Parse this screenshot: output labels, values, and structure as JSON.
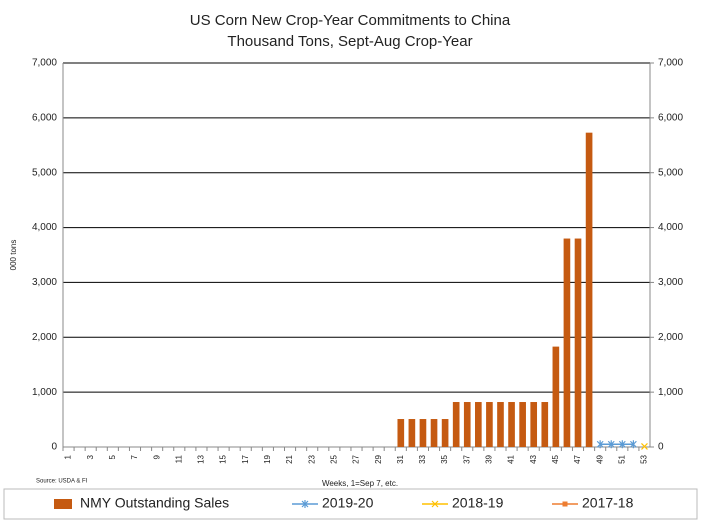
{
  "chart_data": {
    "type": "bar",
    "title": "US Corn New Crop-Year Commitments to China",
    "subtitle": "Thousand Tons, Sept-Aug Crop-Year",
    "y_label": "000 tons",
    "x_label": "Weeks, 1=Sep 7, etc.",
    "source": "Source: USDA & FI",
    "categories": [
      "1",
      null,
      "3",
      null,
      "5",
      null,
      "7",
      null,
      "9",
      null,
      "11",
      null,
      "13",
      null,
      "15",
      null,
      "17",
      null,
      "19",
      null,
      "21",
      null,
      "23",
      null,
      "25",
      null,
      "27",
      null,
      "29",
      null,
      "31",
      null,
      "33",
      null,
      "35",
      null,
      "37",
      null,
      "39",
      null,
      "41",
      null,
      "43",
      null,
      "45",
      null,
      "47",
      null,
      "49",
      null,
      "51",
      null,
      "53"
    ],
    "series": [
      {
        "name": "NMY Outstanding Sales",
        "type": "bar",
        "color": "#c55a11",
        "values": [
          0,
          0,
          0,
          0,
          0,
          0,
          0,
          0,
          0,
          0,
          0,
          0,
          0,
          0,
          0,
          0,
          0,
          0,
          0,
          0,
          0,
          0,
          0,
          0,
          0,
          0,
          0,
          0,
          0,
          0,
          510,
          510,
          510,
          510,
          510,
          820,
          820,
          820,
          820,
          820,
          820,
          820,
          820,
          820,
          1830,
          3800,
          3800,
          5730,
          null,
          null,
          null,
          null,
          null
        ]
      },
      {
        "name": "2019-20",
        "type": "line",
        "marker": "star",
        "color": "#5b9bd5",
        "values": [
          null,
          null,
          null,
          null,
          null,
          null,
          null,
          null,
          null,
          null,
          null,
          null,
          null,
          null,
          null,
          null,
          null,
          null,
          null,
          null,
          null,
          null,
          null,
          null,
          null,
          null,
          null,
          null,
          null,
          null,
          null,
          null,
          null,
          null,
          null,
          null,
          null,
          null,
          null,
          null,
          null,
          null,
          null,
          null,
          null,
          null,
          null,
          null,
          50,
          50,
          50,
          50,
          null
        ]
      },
      {
        "name": "2018-19",
        "type": "line",
        "marker": "x",
        "color": "#ffc000",
        "values": [
          null,
          null,
          null,
          null,
          null,
          null,
          null,
          null,
          null,
          null,
          null,
          null,
          null,
          null,
          null,
          null,
          null,
          null,
          null,
          null,
          null,
          null,
          null,
          null,
          null,
          null,
          null,
          null,
          null,
          null,
          null,
          null,
          null,
          null,
          null,
          null,
          null,
          null,
          null,
          null,
          null,
          null,
          null,
          null,
          null,
          null,
          null,
          null,
          null,
          null,
          null,
          null,
          10
        ]
      },
      {
        "name": "2017-18",
        "type": "line",
        "marker": "square",
        "color": "#ed7d31",
        "values": [
          null,
          null,
          null,
          null,
          null,
          null,
          null,
          null,
          null,
          null,
          null,
          null,
          null,
          null,
          null,
          null,
          null,
          null,
          null,
          null,
          null,
          null,
          null,
          null,
          null,
          null,
          null,
          null,
          null,
          null,
          null,
          null,
          null,
          null,
          null,
          null,
          null,
          null,
          null,
          null,
          null,
          null,
          null,
          null,
          null,
          null,
          null,
          null,
          null,
          null,
          null,
          null,
          null
        ]
      }
    ],
    "ylim": [
      0,
      7000
    ],
    "yticks": [
      0,
      {
        "value": 1000,
        "label": "1,000"
      },
      {
        "value": 2000,
        "label": "2,000"
      },
      {
        "value": 3000,
        "label": "3,000"
      },
      {
        "value": 4000,
        "label": "4,000"
      },
      {
        "value": 5000,
        "label": "5,000"
      },
      {
        "value": 6000,
        "label": "6,000"
      },
      {
        "value": 7000,
        "label": "7,000"
      }
    ],
    "y2lim": [
      0,
      7000
    ],
    "y2ticks": [
      0,
      {
        "value": 1000,
        "label": "1,000"
      },
      {
        "value": 2000,
        "label": "2,000"
      },
      {
        "value": 3000,
        "label": "3,000"
      },
      {
        "value": 4000,
        "label": "4,000"
      },
      {
        "value": 5000,
        "label": "5,000"
      },
      {
        "value": 6000,
        "label": "6,000"
      },
      {
        "value": 7000,
        "label": "7,000"
      }
    ],
    "grid": true,
    "legend": "bottom"
  }
}
